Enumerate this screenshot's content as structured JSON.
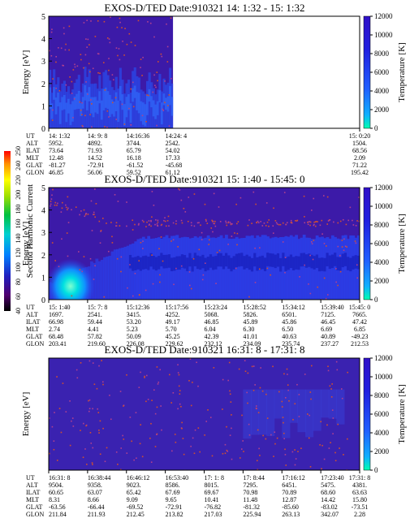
{
  "chart_data": [
    {
      "type": "heatmap",
      "title": "EXOS-D/TED   Date:910321  14: 1:32 - 15: 1:32",
      "ylabel": "Energy [eV]",
      "ylim": [
        0,
        5
      ],
      "yticks": [
        "0",
        "1",
        "2",
        "3",
        "4",
        "5"
      ],
      "colorbar_label": "Temperature [K]",
      "colorbar_ticks": [
        "0",
        "2000",
        "4000",
        "6000",
        "8000",
        "10000",
        "12000"
      ],
      "data_fraction": 0.4,
      "blob_center": {
        "t": 0.96,
        "energy": 2.4
      },
      "row_labels": [
        "UT",
        "ALT",
        "ILAT",
        "MLT",
        "GLAT",
        "GLON"
      ],
      "columns": [
        {
          "at": 0.0,
          "values": [
            "14: 1:32",
            "5952.",
            "73.64",
            "12.48",
            "-81.27",
            "46.85"
          ]
        },
        {
          "at": 0.125,
          "values": [
            "14: 9: 8",
            "4892.",
            "71.93",
            "14.52",
            "-72.91",
            "56.06"
          ]
        },
        {
          "at": 0.25,
          "values": [
            "14:16:36",
            "3744.",
            "65.79",
            "16.18",
            "-61.52",
            "59.52"
          ]
        },
        {
          "at": 0.375,
          "values": [
            "14:24: 4",
            "2542.",
            "54.02",
            "17.33",
            "-45.68",
            "61.12"
          ]
        },
        {
          "at": 1.0,
          "values": [
            "15: 0:20",
            "1504.",
            "68.56",
            "2.09",
            "71.22",
            "195.42"
          ]
        }
      ]
    },
    {
      "type": "heatmap",
      "title": "EXOS-D/TED   Date:910321  15: 1:40 - 15:45: 0",
      "ylabel": "Energy [eV]",
      "ylim": [
        0,
        5
      ],
      "yticks": [
        "0",
        "1",
        "2",
        "3",
        "4",
        "5"
      ],
      "colorbar_label": "Temperature [K]",
      "colorbar_ticks": [
        "0",
        "2000",
        "4000",
        "6000",
        "8000",
        "10000",
        "12000"
      ],
      "data_fraction": 1.0,
      "blob_center": {
        "t": 0.07,
        "energy": 0.6
      },
      "row_labels": [
        "UT",
        "ALT",
        "ILAT",
        "MLT",
        "GLAT",
        "GLON"
      ],
      "columns": [
        {
          "at": 0.0,
          "values": [
            "15: 1:40",
            "1697.",
            "66.98",
            "2.74",
            "68.48",
            "203.41"
          ]
        },
        {
          "at": 0.125,
          "values": [
            "15: 7: 8",
            "2541.",
            "59.44",
            "4.41",
            "57.82",
            "219.60"
          ]
        },
        {
          "at": 0.25,
          "values": [
            "15:12:36",
            "3415.",
            "53.20",
            "5.23",
            "50.09",
            "226.08"
          ]
        },
        {
          "at": 0.375,
          "values": [
            "15:17:56",
            "4252.",
            "49.17",
            "5.70",
            "45.25",
            "229.62"
          ]
        },
        {
          "at": 0.5,
          "values": [
            "15:23:24",
            "5068.",
            "46.85",
            "6.04",
            "42.39",
            "232.12"
          ]
        },
        {
          "at": 0.625,
          "values": [
            "15:28:52",
            "5826.",
            "45.89",
            "6.30",
            "41.01",
            "234.09"
          ]
        },
        {
          "at": 0.75,
          "values": [
            "15:34:12",
            "6501.",
            "45.86",
            "6.50",
            "40.63",
            "235.74"
          ]
        },
        {
          "at": 0.875,
          "values": [
            "15:39:40",
            "7125.",
            "46.45",
            "6.69",
            "40.89",
            "237.27"
          ]
        },
        {
          "at": 1.0,
          "values": [
            "15:45: 0",
            "7665.",
            "47.42",
            "6.85",
            "-49.23",
            "212.53"
          ]
        }
      ]
    },
    {
      "type": "heatmap",
      "title": "EXOS-D/TED   Date:910321  16:31: 8 - 17:31: 8",
      "ylabel": "Energy [eV]",
      "ylim": [
        0,
        12000
      ],
      "yticks": [],
      "colorbar_label": "Temperature [K]",
      "colorbar_ticks": [
        "0",
        "2000",
        "4000",
        "6000",
        "8000",
        "10000",
        "12000"
      ],
      "data_fraction": 1.0,
      "blob_center": null,
      "row_labels": [
        "UT",
        "ALT",
        "ILAT",
        "MLT",
        "GLAT",
        "GLON"
      ],
      "columns": [
        {
          "at": 0.0,
          "values": [
            "16:31: 8",
            "9504.",
            "60.65",
            "8.31",
            "-63.56",
            "211.84"
          ]
        },
        {
          "at": 0.125,
          "values": [
            "16:38:44",
            "9358.",
            "63.07",
            "8.66",
            "-66.44",
            "211.93"
          ]
        },
        {
          "at": 0.25,
          "values": [
            "16:46:12",
            "9023.",
            "65.42",
            "9.09",
            "-69.52",
            "212.45"
          ]
        },
        {
          "at": 0.375,
          "values": [
            "16:53:40",
            "8586.",
            "67.69",
            "9.65",
            "-72.91",
            "213.82"
          ]
        },
        {
          "at": 0.5,
          "values": [
            "17: 1: 8",
            "8015.",
            "69.67",
            "10.41",
            "-76.82",
            "217.03"
          ]
        },
        {
          "at": 0.625,
          "values": [
            "17: 8:44",
            "7295.",
            "70.98",
            "11.48",
            "-81.32",
            "225.94"
          ]
        },
        {
          "at": 0.75,
          "values": [
            "17:16:12",
            "6451.",
            "70.89",
            "12.87",
            "-85.60",
            "263.13"
          ]
        },
        {
          "at": 0.875,
          "values": [
            "17:23:40",
            "5475.",
            "68.60",
            "14.42",
            "-83.02",
            "342.07"
          ]
        },
        {
          "at": 1.0,
          "values": [
            "17:31: 8",
            "4381.",
            "63.63",
            "15.80",
            "-73.51",
            "2.28"
          ]
        }
      ]
    }
  ],
  "side_colorbar": {
    "label": "Second Harmonic Current",
    "ticks": [
      "40",
      "60",
      "80",
      "100",
      "120",
      "140",
      "160",
      "180",
      "200",
      "220",
      "240",
      "250"
    ]
  }
}
